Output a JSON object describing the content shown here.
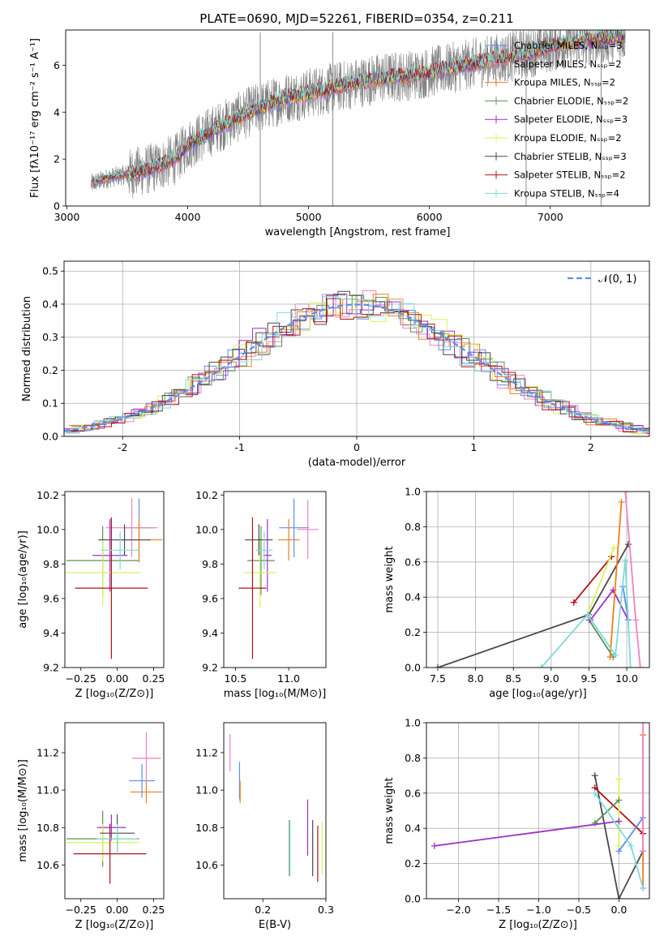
{
  "title": "PLATE=0690, MJD=52261, FIBERID=0354, z=0.211",
  "colors": {
    "chabrier_miles": "#5b8fe8",
    "salpeter_miles": "#ee82c4",
    "kroupa_miles": "#ef7f1a",
    "chabrier_elodie": "#5f8f5a",
    "salpeter_elodie": "#9b30c8",
    "kroupa_elodie": "#d8f25a",
    "chabrier_stelib": "#4a4a4a",
    "salpeter_stelib": "#b0121a",
    "kroupa_stelib": "#7fd8de",
    "data": "#808080",
    "gaussian": "#5b8fe8",
    "grid": "#b0b0b0"
  },
  "chart_data": [
    {
      "id": "spectrum",
      "type": "line",
      "xlabel": "wavelength [Angstrom, rest frame]",
      "ylabel": "Flux [fλ10⁻¹⁷ erg cm⁻² s⁻¹ A⁻¹]",
      "xlim": [
        2990,
        7820
      ],
      "ylim": [
        0,
        7.5
      ],
      "xticks": [
        3000,
        4000,
        5000,
        6000,
        7000
      ],
      "yticks": [
        0,
        2,
        4,
        6
      ],
      "grid": false,
      "legend_position": "top-right",
      "legend": [
        "Chabrier MILES, Nₛₛₚ=3",
        "Salpeter MILES, Nₛₛₚ=2",
        "Kroupa MILES, Nₛₛₚ=2",
        "Chabrier ELODIE, Nₛₛₚ=2",
        "Salpeter ELODIE, Nₛₛₚ=3",
        "Kroupa ELODIE, Nₛₛₚ=2",
        "Chabrier STELIB, Nₛₛₚ=3",
        "Salpeter STELIB, Nₛₛₚ=2",
        "Kroupa STELIB, Nₛₛₚ=4"
      ],
      "continuum": {
        "x": [
          3200,
          3350,
          3500,
          3700,
          3900,
          4000,
          4200,
          4500,
          4800,
          5000,
          5300,
          5600,
          5900,
          6200,
          6500,
          6800,
          7100,
          7400,
          7600
        ],
        "y": [
          0.95,
          1.2,
          1.35,
          1.6,
          2.0,
          2.6,
          3.2,
          4.0,
          4.6,
          4.8,
          5.15,
          5.45,
          5.6,
          5.9,
          6.2,
          6.5,
          6.9,
          7.1,
          7.25
        ]
      },
      "data_range_x": [
        3200,
        7620
      ]
    },
    {
      "id": "residuals",
      "type": "line",
      "xlabel": "(data-model)/error",
      "ylabel": "Normed distribution",
      "xlim": [
        -2.5,
        2.5
      ],
      "ylim": [
        0,
        0.53
      ],
      "xticks": [
        -2,
        -1,
        0,
        1,
        2
      ],
      "yticks": [
        0.0,
        0.1,
        0.2,
        0.3,
        0.4,
        0.5
      ],
      "grid": true,
      "legend_position": "top-right",
      "gaussian_label": "𝒩(0, 1)"
    },
    {
      "id": "age_vs_Z",
      "type": "scatter",
      "xlabel": "Z [log₁₀(Z/Z⊙)]",
      "ylabel": "age  [log₁₀(age/yr)]",
      "xlim": [
        -0.36,
        0.32
      ],
      "ylim": [
        9.2,
        10.22
      ],
      "xticks": [
        -0.25,
        0.0,
        0.25
      ],
      "yticks": [
        9.2,
        9.4,
        9.6,
        9.8,
        10.0,
        10.2
      ],
      "points": [
        {
          "m": "chabrier_miles",
          "x": 0.15,
          "y": 10.01,
          "xerr": 0.1,
          "yerr": 0.17
        },
        {
          "m": "salpeter_miles",
          "x": 0.1,
          "y": 10.01,
          "xerr": 0.18,
          "yerr": 0.17
        },
        {
          "m": "kroupa_miles",
          "x": 0.15,
          "y": 9.94,
          "xerr": 0.16,
          "yerr": 0.13
        },
        {
          "m": "chabrier_elodie",
          "x": -0.1,
          "y": 9.82,
          "xerr": 0.25,
          "yerr": 0.2
        },
        {
          "m": "salpeter_elodie",
          "x": -0.05,
          "y": 9.85,
          "xerr": 0.12,
          "yerr": 0.21
        },
        {
          "m": "kroupa_elodie",
          "x": -0.1,
          "y": 9.75,
          "xerr": 0.26,
          "yerr": 0.19
        },
        {
          "m": "chabrier_stelib",
          "x": 0.05,
          "y": 9.94,
          "xerr": 0.18,
          "yerr": 0.09
        },
        {
          "m": "salpeter_stelib",
          "x": -0.04,
          "y": 9.66,
          "xerr": 0.25,
          "yerr": 0.41
        },
        {
          "m": "kroupa_stelib",
          "x": 0.02,
          "y": 9.88,
          "xerr": 0.13,
          "yerr": 0.11
        }
      ]
    },
    {
      "id": "age_vs_mass",
      "type": "scatter",
      "xlabel": "mass [log₁₀(M/M⊙)]",
      "ylabel": "",
      "xlim": [
        10.39,
        11.35
      ],
      "ylim": [
        9.2,
        10.22
      ],
      "xticks": [
        10.5,
        11.0
      ],
      "yticks": [
        9.2,
        9.4,
        9.6,
        9.8,
        10.0,
        10.2
      ],
      "points": [
        {
          "m": "chabrier_miles",
          "x": 11.05,
          "y": 10.01,
          "xerr": 0.14,
          "yerr": 0.17
        },
        {
          "m": "salpeter_miles",
          "x": 11.18,
          "y": 10.0,
          "xerr": 0.1,
          "yerr": 0.17
        },
        {
          "m": "kroupa_miles",
          "x": 11.0,
          "y": 9.94,
          "xerr": 0.1,
          "yerr": 0.12
        },
        {
          "m": "chabrier_elodie",
          "x": 10.74,
          "y": 9.82,
          "xerr": 0.13,
          "yerr": 0.2
        },
        {
          "m": "salpeter_elodie",
          "x": 10.8,
          "y": 9.85,
          "xerr": 0.04,
          "yerr": 0.21
        },
        {
          "m": "kroupa_elodie",
          "x": 10.73,
          "y": 9.75,
          "xerr": 0.15,
          "yerr": 0.2
        },
        {
          "m": "chabrier_stelib",
          "x": 10.72,
          "y": 9.94,
          "xerr": 0.13,
          "yerr": 0.09
        },
        {
          "m": "salpeter_stelib",
          "x": 10.66,
          "y": 9.66,
          "xerr": 0.13,
          "yerr": 0.41
        },
        {
          "m": "kroupa_stelib",
          "x": 10.77,
          "y": 9.88,
          "xerr": 0.08,
          "yerr": 0.11
        }
      ]
    },
    {
      "id": "weight_vs_age",
      "type": "line",
      "xlabel": "age  [log₁₀(age/yr)]",
      "ylabel": "mass weight",
      "xlim": [
        7.35,
        10.3
      ],
      "ylim": [
        0,
        1
      ],
      "xticks": [
        7.5,
        8.0,
        8.5,
        9.0,
        9.5,
        10.0
      ],
      "yticks": [
        0.0,
        0.2,
        0.4,
        0.6,
        0.8,
        1.0
      ],
      "grid": true,
      "series": [
        {
          "m": "chabrier_stelib",
          "x": [
            7.5,
            9.5,
            10.02
          ],
          "y": [
            0.0,
            0.3,
            0.7
          ]
        },
        {
          "m": "salpeter_stelib",
          "x": [
            9.3,
            9.8
          ],
          "y": [
            0.37,
            0.63
          ]
        },
        {
          "m": "kroupa_elodie",
          "x": [
            9.48,
            9.83
          ],
          "y": [
            0.3,
            0.68
          ]
        },
        {
          "m": "chabrier_elodie",
          "x": [
            9.5,
            9.82
          ],
          "y": [
            0.27,
            0.06
          ]
        },
        {
          "m": "salpeter_elodie",
          "x": [
            9.52,
            9.82,
            10.02
          ],
          "y": [
            0.27,
            0.44,
            0.27
          ]
        },
        {
          "m": "kroupa_miles",
          "x": [
            9.78,
            9.93
          ],
          "y": [
            0.06,
            0.94
          ]
        },
        {
          "m": "chabrier_miles",
          "x": [
            9.95,
            10.02
          ],
          "y": [
            0.46,
            0.27
          ]
        },
        {
          "m": "salpeter_miles",
          "x": [
            9.98,
            10.12,
            10.18
          ],
          "y": [
            1.0,
            0.27,
            0.0
          ]
        },
        {
          "m": "kroupa_stelib",
          "x": [
            8.87,
            9.48,
            9.85,
            9.98,
            10.05
          ],
          "y": [
            0.0,
            0.3,
            0.07,
            0.61,
            0.0
          ]
        }
      ]
    },
    {
      "id": "mass_vs_Z",
      "type": "scatter",
      "xlabel": "Z [log₁₀(Z/Z⊙)]",
      "ylabel": "mass [log₁₀(M/M⊙)]",
      "xlim": [
        -0.36,
        0.32
      ],
      "ylim": [
        10.42,
        11.36
      ],
      "xticks": [
        -0.25,
        0.0,
        0.25
      ],
      "yticks": [
        10.6,
        10.8,
        11.0,
        11.2
      ],
      "points": [
        {
          "m": "chabrier_miles",
          "x": 0.17,
          "y": 11.05,
          "xerr": 0.09,
          "yerr": 0.09
        },
        {
          "m": "salpeter_miles",
          "x": 0.2,
          "y": 11.17,
          "xerr": 0.1,
          "yerr": 0.14
        },
        {
          "m": "kroupa_miles",
          "x": 0.2,
          "y": 10.99,
          "xerr": 0.11,
          "yerr": 0.06
        },
        {
          "m": "chabrier_elodie",
          "x": -0.1,
          "y": 10.74,
          "xerr": 0.25,
          "yerr": 0.15
        },
        {
          "m": "salpeter_elodie",
          "x": -0.04,
          "y": 10.8,
          "xerr": 0.1,
          "yerr": 0.07
        },
        {
          "m": "kroupa_elodie",
          "x": -0.1,
          "y": 10.72,
          "xerr": 0.25,
          "yerr": 0.1
        },
        {
          "m": "chabrier_stelib",
          "x": 0.0,
          "y": 10.77,
          "xerr": 0.12,
          "yerr": 0.1
        },
        {
          "m": "salpeter_stelib",
          "x": -0.05,
          "y": 10.66,
          "xerr": 0.25,
          "yerr": 0.16
        },
        {
          "m": "kroupa_stelib",
          "x": 0.0,
          "y": 10.74,
          "xerr": 0.14,
          "yerr": 0.08
        }
      ]
    },
    {
      "id": "mass_vs_ebv",
      "type": "scatter",
      "xlabel": "E(B-V)",
      "ylabel": "",
      "xlim": [
        0.138,
        0.3
      ],
      "ylim": [
        10.42,
        11.36
      ],
      "xticks": [
        0.2,
        0.3
      ],
      "yticks": [
        10.6,
        10.8,
        11.0,
        11.2
      ],
      "points": [
        {
          "m": "chabrier_miles",
          "x": 0.163,
          "y": 11.05,
          "xerr": 0.0,
          "yerr": 0.1
        },
        {
          "m": "salpeter_miles",
          "x": 0.148,
          "y": 11.2,
          "xerr": 0.0,
          "yerr": 0.1
        },
        {
          "m": "kroupa_miles",
          "x": 0.164,
          "y": 10.99,
          "xerr": 0.0,
          "yerr": 0.06
        },
        {
          "m": "chabrier_elodie",
          "x": 0.242,
          "y": 10.69,
          "xerr": 0.0,
          "yerr": 0.15
        },
        {
          "m": "salpeter_elodie",
          "x": 0.271,
          "y": 10.8,
          "xerr": 0.0,
          "yerr": 0.15
        },
        {
          "m": "kroupa_elodie",
          "x": 0.294,
          "y": 10.69,
          "xerr": 0.0,
          "yerr": 0.14
        },
        {
          "m": "chabrier_stelib",
          "x": 0.279,
          "y": 10.69,
          "xerr": 0.0,
          "yerr": 0.15
        },
        {
          "m": "salpeter_stelib",
          "x": 0.287,
          "y": 10.66,
          "xerr": 0.0,
          "yerr": 0.15
        },
        {
          "m": "kroupa_stelib",
          "x": 0.243,
          "y": 10.69,
          "xerr": 0.0,
          "yerr": 0.15
        }
      ]
    },
    {
      "id": "weight_vs_Z",
      "type": "line",
      "xlabel": "Z [log₁₀(Z/Z⊙)]",
      "ylabel": "mass weight",
      "xlim": [
        -2.4,
        0.38
      ],
      "ylim": [
        0,
        1
      ],
      "xticks": [
        -2.0,
        -1.5,
        -1.0,
        -0.5,
        0.0
      ],
      "yticks": [
        0.0,
        0.2,
        0.4,
        0.6,
        0.8,
        1.0
      ],
      "grid": true,
      "series": [
        {
          "m": "chabrier_stelib",
          "x": [
            -0.3,
            0.0,
            0.3
          ],
          "y": [
            0.7,
            0.0,
            0.27
          ]
        },
        {
          "m": "salpeter_stelib",
          "x": [
            -0.3,
            0.3
          ],
          "y": [
            0.63,
            0.37
          ]
        },
        {
          "m": "kroupa_elodie",
          "x": [
            0.0,
            0.0
          ],
          "y": [
            0.68,
            0.3
          ]
        },
        {
          "m": "chabrier_elodie",
          "x": [
            -0.3,
            0.0
          ],
          "y": [
            0.43,
            0.56
          ]
        },
        {
          "m": "salpeter_elodie",
          "x": [
            -2.3,
            0.0
          ],
          "y": [
            0.3,
            0.44
          ]
        },
        {
          "m": "kroupa_miles",
          "x": [
            0.3,
            0.3
          ],
          "y": [
            0.93,
            0.06
          ]
        },
        {
          "m": "chabrier_miles",
          "x": [
            0.0,
            0.3
          ],
          "y": [
            0.27,
            0.46
          ]
        },
        {
          "m": "salpeter_miles",
          "x": [
            0.3,
            0.3
          ],
          "y": [
            1.0,
            0.27
          ]
        },
        {
          "m": "kroupa_stelib",
          "x": [
            -0.3,
            0.15,
            0.3
          ],
          "y": [
            0.6,
            0.3,
            0.06
          ]
        }
      ]
    }
  ]
}
